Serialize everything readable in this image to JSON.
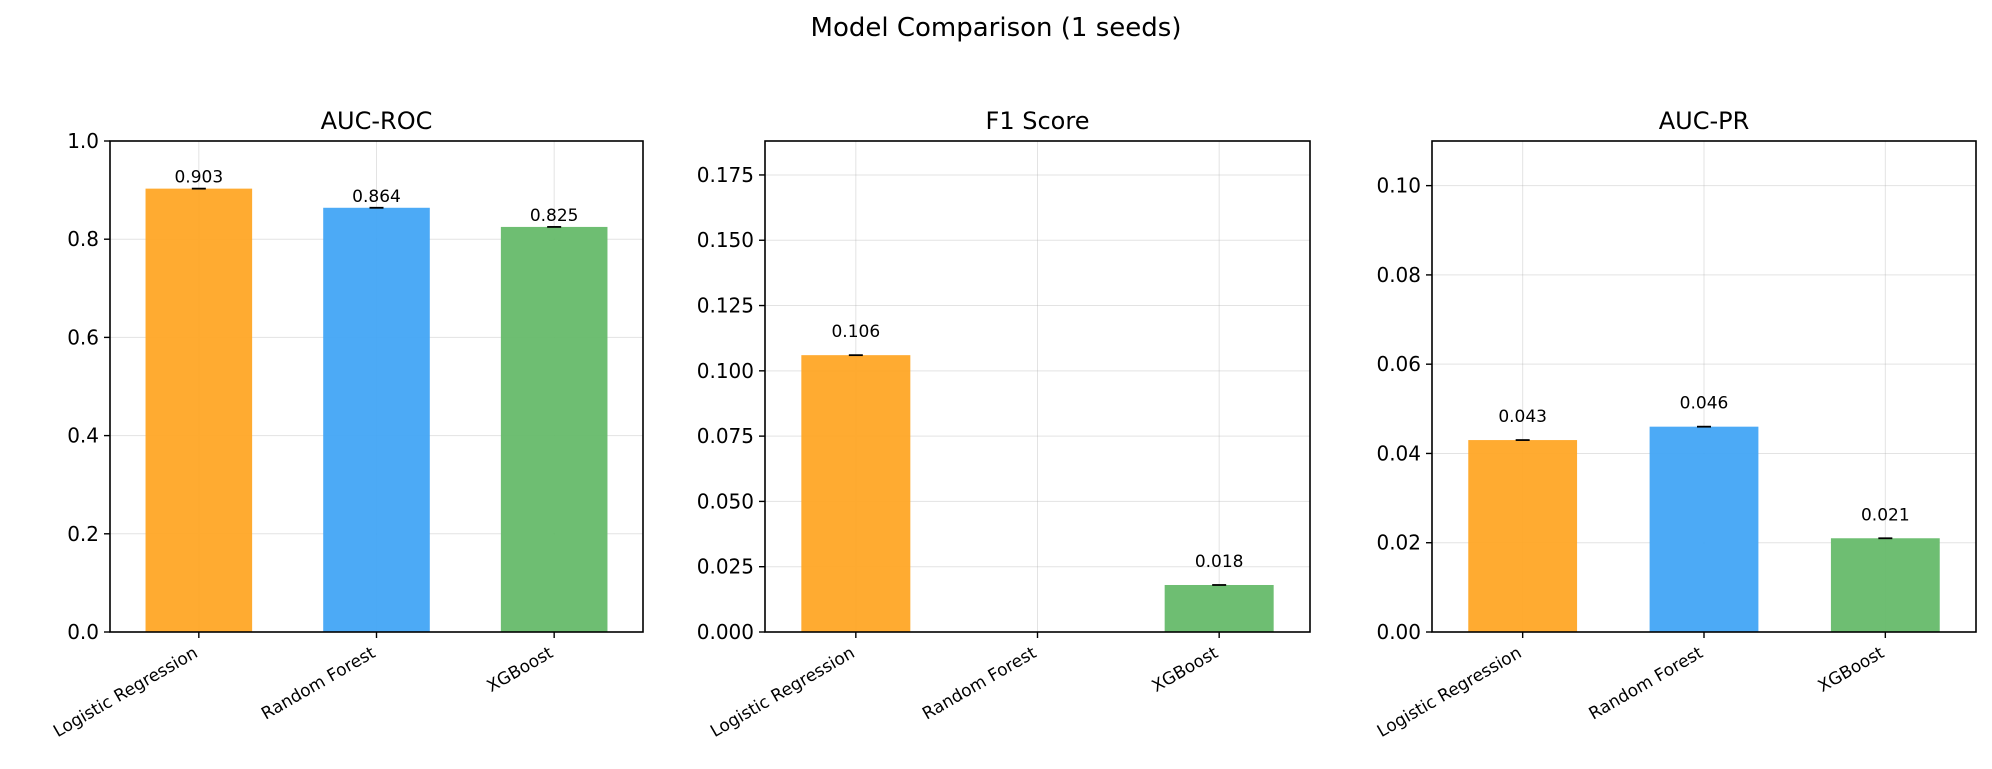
{
  "title": "Model Comparison (1 seeds)",
  "chart_data": [
    {
      "type": "bar",
      "title": "AUC-ROC",
      "categories": [
        "Logistic Regression",
        "Random Forest",
        "XGBoost"
      ],
      "values": [
        0.903,
        0.864,
        0.825
      ],
      "data_labels": [
        "0.903",
        "0.864",
        "0.825"
      ],
      "colors": [
        "#FFA726",
        "#42A5F5",
        "#66BB6A"
      ],
      "ylim": [
        0,
        1.0
      ],
      "yticks": [
        0.0,
        0.2,
        0.4,
        0.6,
        0.8,
        1.0
      ],
      "ytick_labels": [
        "0.0",
        "0.2",
        "0.4",
        "0.6",
        "0.8",
        "1.0"
      ],
      "grid": true,
      "error_bars": true
    },
    {
      "type": "bar",
      "title": "F1 Score",
      "categories": [
        "Logistic Regression",
        "Random Forest",
        "XGBoost"
      ],
      "values": [
        0.106,
        0.0,
        0.018
      ],
      "data_labels": [
        "0.106",
        "",
        "0.018"
      ],
      "colors": [
        "#FFA726",
        "#42A5F5",
        "#66BB6A"
      ],
      "ylim": [
        0,
        0.188
      ],
      "yticks": [
        0.0,
        0.025,
        0.05,
        0.075,
        0.1,
        0.125,
        0.15,
        0.175
      ],
      "ytick_labels": [
        "0.000",
        "0.025",
        "0.050",
        "0.075",
        "0.100",
        "0.125",
        "0.150",
        "0.175"
      ],
      "grid": true,
      "error_bars": true
    },
    {
      "type": "bar",
      "title": "AUC-PR",
      "categories": [
        "Logistic Regression",
        "Random Forest",
        "XGBoost"
      ],
      "values": [
        0.043,
        0.046,
        0.021
      ],
      "data_labels": [
        "0.043",
        "0.046",
        "0.021"
      ],
      "colors": [
        "#FFA726",
        "#42A5F5",
        "#66BB6A"
      ],
      "ylim": [
        0,
        0.11
      ],
      "yticks": [
        0.0,
        0.02,
        0.04,
        0.06,
        0.08,
        0.1
      ],
      "ytick_labels": [
        "0.00",
        "0.02",
        "0.04",
        "0.06",
        "0.08",
        "0.10"
      ],
      "grid": true,
      "error_bars": true
    }
  ]
}
